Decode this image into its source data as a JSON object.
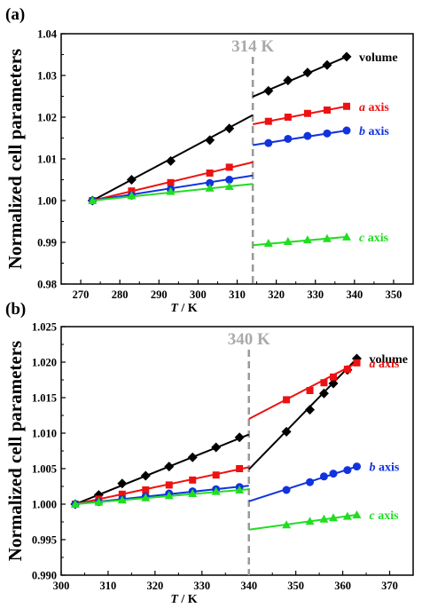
{
  "y_axis_title": "Normalized cell parameters",
  "colors": {
    "volume": "#000000",
    "a": "#ee1111",
    "b": "#1133dd",
    "c": "#22dd22",
    "transition": "#999999"
  },
  "chart_data": [
    {
      "type": "line",
      "panel_label": "(a)",
      "xlabel_italic": "T",
      "xlabel_rest": " / K",
      "xlim": [
        265,
        355
      ],
      "ylim": [
        0.98,
        1.04
      ],
      "xticks": [
        270,
        280,
        290,
        300,
        310,
        320,
        330,
        340,
        350
      ],
      "yticks": [
        0.98,
        0.99,
        1.0,
        1.01,
        1.02,
        1.03,
        1.04
      ],
      "ytick_labels": [
        "0.98",
        "0.99",
        "1.00",
        "1.01",
        "1.02",
        "1.03",
        "1.04"
      ],
      "transition_x": 314,
      "transition_label": "314 K",
      "series": [
        {
          "key": "volume",
          "marker": "diamond",
          "label_main": "volume",
          "label_italic": "",
          "label_pos": [
            338,
            1.0345
          ],
          "low": {
            "x": [
              273,
              283,
              293,
              303,
              308
            ],
            "y": [
              1.0,
              1.005,
              1.0095,
              1.0145,
              1.0173
            ],
            "fit": [
              [
                273,
                1.0
              ],
              [
                314,
                1.0205
              ]
            ]
          },
          "high": {
            "x": [
              318,
              323,
              328,
              333,
              338
            ],
            "y": [
              1.0263,
              1.0288,
              1.0307,
              1.0325,
              1.0345
            ],
            "fit": [
              [
                314,
                1.0249
              ],
              [
                338,
                1.0345
              ]
            ]
          }
        },
        {
          "key": "a",
          "marker": "square",
          "label_main": " axis",
          "label_italic": "a",
          "label_pos": [
            338,
            1.0226
          ],
          "low": {
            "x": [
              273,
              283,
              293,
              303,
              308
            ],
            "y": [
              1.0,
              1.0023,
              1.0043,
              1.0066,
              1.008
            ],
            "fit": [
              [
                273,
                1.0
              ],
              [
                314,
                1.0092
              ]
            ]
          },
          "high": {
            "x": [
              318,
              323,
              328,
              333,
              338
            ],
            "y": [
              1.019,
              1.02,
              1.0209,
              1.0217,
              1.0226
            ],
            "fit": [
              [
                314,
                1.0183
              ],
              [
                338,
                1.0226
              ]
            ]
          }
        },
        {
          "key": "b",
          "marker": "circle",
          "label_main": " axis",
          "label_italic": "b",
          "label_pos": [
            338,
            1.0168
          ],
          "low": {
            "x": [
              273,
              283,
              293,
              303,
              308
            ],
            "y": [
              1.0,
              1.0012,
              1.0027,
              1.0042,
              1.005
            ],
            "fit": [
              [
                273,
                1.0
              ],
              [
                314,
                1.006
              ]
            ]
          },
          "high": {
            "x": [
              318,
              323,
              328,
              333,
              338
            ],
            "y": [
              1.0138,
              1.0148,
              1.0155,
              1.0161,
              1.0168
            ],
            "fit": [
              [
                314,
                1.0133
              ],
              [
                338,
                1.0168
              ]
            ]
          }
        },
        {
          "key": "c",
          "marker": "triangle",
          "label_main": " axis",
          "label_italic": "c",
          "label_pos": [
            338,
            0.9913
          ],
          "low": {
            "x": [
              273,
              283,
              293,
              303,
              308
            ],
            "y": [
              1.0,
              1.0012,
              1.0022,
              1.003,
              1.0034
            ],
            "fit": [
              [
                273,
                1.0
              ],
              [
                314,
                1.004
              ]
            ]
          },
          "high": {
            "x": [
              318,
              323,
              328,
              333,
              338
            ],
            "y": [
              0.9898,
              0.9902,
              0.9906,
              0.9909,
              0.9913
            ],
            "fit": [
              [
                314,
                0.9893
              ],
              [
                338,
                0.9913
              ]
            ]
          }
        }
      ]
    },
    {
      "type": "line",
      "panel_label": "(b)",
      "xlabel_italic": "T",
      "xlabel_rest": " / K",
      "xlim": [
        300,
        375
      ],
      "ylim": [
        0.99,
        1.025
      ],
      "xticks": [
        300,
        310,
        320,
        330,
        340,
        350,
        360,
        370
      ],
      "yticks": [
        0.99,
        0.995,
        1.0,
        1.005,
        1.01,
        1.015,
        1.02,
        1.025
      ],
      "ytick_labels": [
        "0.990",
        "0.995",
        "1.000",
        "1.005",
        "1.010",
        "1.015",
        "1.020",
        "1.025"
      ],
      "transition_x": 340,
      "transition_label": "340 K",
      "series": [
        {
          "key": "volume",
          "marker": "diamond",
          "label_main": "volume",
          "label_italic": "",
          "label_pos": [
            363,
            1.0205
          ],
          "low": {
            "x": [
              303,
              308,
              313,
              318,
              323,
              328,
              333,
              338
            ],
            "y": [
              1.0,
              1.0013,
              1.0029,
              1.004,
              1.0053,
              1.0066,
              1.008,
              1.0094
            ],
            "fit": [
              [
                303,
                1.0
              ],
              [
                340,
                1.0098
              ]
            ]
          },
          "high": {
            "x": [
              348,
              353,
              356,
              358,
              361,
              363
            ],
            "y": [
              1.0102,
              1.0133,
              1.0156,
              1.017,
              1.0189,
              1.0205
            ],
            "fit": [
              [
                340,
                1.0049
              ],
              [
                363,
                1.0205
              ]
            ]
          }
        },
        {
          "key": "a",
          "marker": "square",
          "label_main": " axis",
          "label_italic": "a",
          "label_pos": [
            363,
            1.0199
          ],
          "low": {
            "x": [
              303,
              308,
              313,
              318,
              323,
              328,
              333,
              338
            ],
            "y": [
              1.0,
              1.0007,
              1.0014,
              1.002,
              1.0027,
              1.0034,
              1.0041,
              1.005
            ],
            "fit": [
              [
                303,
                1.0
              ],
              [
                340,
                1.0052
              ]
            ]
          },
          "high": {
            "x": [
              348,
              353,
              356,
              358,
              361,
              363
            ],
            "y": [
              1.0147,
              1.016,
              1.0171,
              1.0179,
              1.019,
              1.0199
            ],
            "fit": [
              [
                340,
                1.012
              ],
              [
                363,
                1.0199
              ]
            ]
          }
        },
        {
          "key": "b",
          "marker": "circle",
          "label_main": " axis",
          "label_italic": "b",
          "label_pos": [
            363,
            1.0053
          ],
          "low": {
            "x": [
              303,
              308,
              313,
              318,
              323,
              328,
              333,
              338
            ],
            "y": [
              1.0,
              1.0003,
              1.0007,
              1.0011,
              1.0015,
              1.0018,
              1.0021,
              1.0024
            ],
            "fit": [
              [
                303,
                1.0
              ],
              [
                340,
                1.0026
              ]
            ]
          },
          "high": {
            "x": [
              348,
              353,
              356,
              358,
              361,
              363
            ],
            "y": [
              1.002,
              1.0031,
              1.0039,
              1.0043,
              1.0048,
              1.0053
            ],
            "fit": [
              [
                340,
                1.0004
              ],
              [
                363,
                1.0053
              ]
            ]
          }
        },
        {
          "key": "c",
          "marker": "triangle",
          "label_main": " axis",
          "label_italic": "c",
          "label_pos": [
            363,
            0.9985
          ],
          "low": {
            "x": [
              303,
              308,
              313,
              318,
              323,
              328,
              333,
              338
            ],
            "y": [
              1.0,
              1.0003,
              1.0006,
              1.0009,
              1.0012,
              1.0015,
              1.0018,
              1.002
            ],
            "fit": [
              [
                303,
                1.0
              ],
              [
                340,
                1.0021
              ]
            ]
          },
          "high": {
            "x": [
              348,
              353,
              356,
              358,
              361,
              363
            ],
            "y": [
              0.9971,
              0.9976,
              0.9979,
              0.9981,
              0.9983,
              0.9985
            ],
            "fit": [
              [
                340,
                0.9964
              ],
              [
                363,
                0.9985
              ]
            ]
          }
        }
      ]
    }
  ]
}
